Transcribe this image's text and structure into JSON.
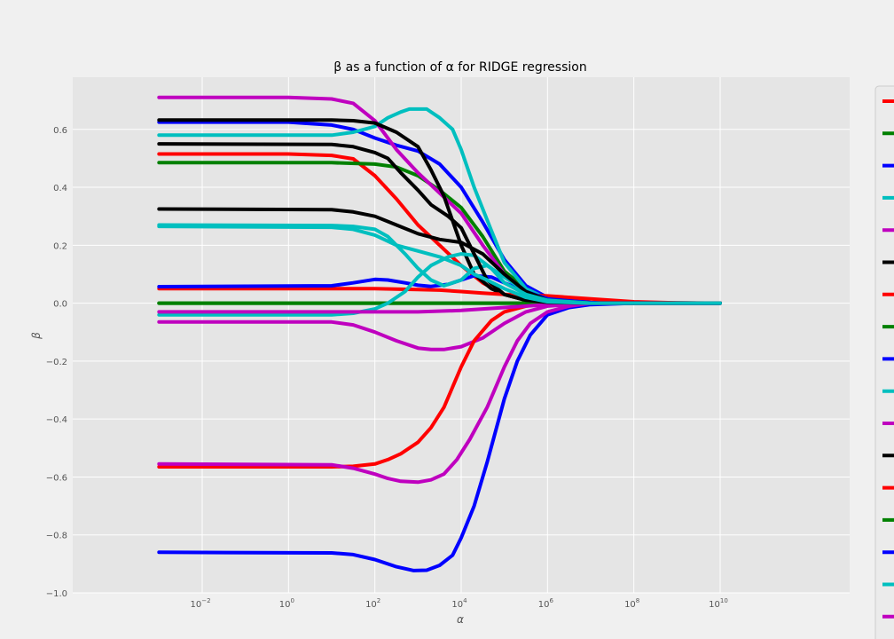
{
  "chart_data": {
    "type": "line",
    "title": "β as a function of α for RIDGE regression",
    "xlabel": "α",
    "ylabel": "β",
    "xscale": "log",
    "xlim": [
      1e-05,
      10000000000000
    ],
    "ylim": [
      -1.0,
      0.78
    ],
    "grid": true,
    "legend_location": "right, cut off at image edge",
    "x_ticks": [
      {
        "exp": -2,
        "base": "10",
        "power": "−2"
      },
      {
        "exp": 0,
        "base": "10",
        "power": "0"
      },
      {
        "exp": 2,
        "base": "10",
        "power": "2"
      },
      {
        "exp": 4,
        "base": "10",
        "power": "4"
      },
      {
        "exp": 6,
        "base": "10",
        "power": "6"
      },
      {
        "exp": 8,
        "base": "10",
        "power": "8"
      },
      {
        "exp": 10,
        "base": "10",
        "power": "10"
      }
    ],
    "y_ticks": [
      {
        "value": 0.6,
        "label": "0.6"
      },
      {
        "value": 0.4,
        "label": "0.4"
      },
      {
        "value": 0.2,
        "label": "0.2"
      },
      {
        "value": 0.0,
        "label": "0.0"
      },
      {
        "value": -0.2,
        "label": "−0.2"
      },
      {
        "value": -0.4,
        "label": "−0.4"
      },
      {
        "value": -0.6,
        "label": "−0.6"
      },
      {
        "value": -0.8,
        "label": "−0.8"
      },
      {
        "value": -1.0,
        "label": "−1.0"
      }
    ],
    "series": [
      {
        "color": "#ff0000",
        "points": [
          [
            -3,
            0.515
          ],
          [
            0,
            0.515
          ],
          [
            1,
            0.51
          ],
          [
            1.5,
            0.498
          ],
          [
            2,
            0.44
          ],
          [
            2.5,
            0.36
          ],
          [
            3,
            0.27
          ],
          [
            3.5,
            0.2
          ],
          [
            4,
            0.13
          ],
          [
            4.5,
            0.07
          ],
          [
            5,
            0.03
          ],
          [
            5.5,
            0.01
          ],
          [
            6,
            0.003
          ],
          [
            7,
            0.0
          ],
          [
            10,
            0.0
          ]
        ]
      },
      {
        "color": "#008000",
        "points": [
          [
            -3,
            0.485
          ],
          [
            1,
            0.485
          ],
          [
            2,
            0.48
          ],
          [
            2.5,
            0.47
          ],
          [
            3,
            0.44
          ],
          [
            3.5,
            0.39
          ],
          [
            4,
            0.33
          ],
          [
            4.5,
            0.23
          ],
          [
            5,
            0.11
          ],
          [
            5.5,
            0.05
          ],
          [
            6,
            0.02
          ],
          [
            7,
            0.002
          ],
          [
            10,
            0.0
          ]
        ]
      },
      {
        "color": "#0000ff",
        "points": [
          [
            -3,
            0.625
          ],
          [
            0,
            0.625
          ],
          [
            1,
            0.615
          ],
          [
            1.5,
            0.6
          ],
          [
            2,
            0.57
          ],
          [
            2.5,
            0.545
          ],
          [
            3,
            0.525
          ],
          [
            3.5,
            0.48
          ],
          [
            4,
            0.4
          ],
          [
            4.5,
            0.28
          ],
          [
            5,
            0.15
          ],
          [
            5.5,
            0.06
          ],
          [
            6,
            0.02
          ],
          [
            7,
            0.002
          ],
          [
            10,
            0.0
          ]
        ]
      },
      {
        "color": "#00bfbf",
        "points": [
          [
            -3,
            0.58
          ],
          [
            1,
            0.58
          ],
          [
            1.5,
            0.59
          ],
          [
            2,
            0.61
          ],
          [
            2.3,
            0.64
          ],
          [
            2.6,
            0.66
          ],
          [
            2.8,
            0.67
          ],
          [
            3.2,
            0.67
          ],
          [
            3.5,
            0.64
          ],
          [
            3.8,
            0.6
          ],
          [
            4,
            0.53
          ],
          [
            4.3,
            0.4
          ],
          [
            4.7,
            0.25
          ],
          [
            5,
            0.14
          ],
          [
            5.5,
            0.05
          ],
          [
            6,
            0.015
          ],
          [
            7,
            0.0
          ],
          [
            10,
            0.0
          ]
        ]
      },
      {
        "color": "#bf00bf",
        "points": [
          [
            -3,
            0.71
          ],
          [
            0,
            0.71
          ],
          [
            1,
            0.705
          ],
          [
            1.5,
            0.69
          ],
          [
            2,
            0.63
          ],
          [
            2.5,
            0.53
          ],
          [
            3,
            0.45
          ],
          [
            3.5,
            0.38
          ],
          [
            4,
            0.31
          ],
          [
            4.5,
            0.2
          ],
          [
            5,
            0.1
          ],
          [
            5.5,
            0.04
          ],
          [
            6,
            0.01
          ],
          [
            7,
            0.0
          ],
          [
            10,
            0.0
          ]
        ]
      },
      {
        "color": "#000000",
        "points": [
          [
            -3,
            0.632
          ],
          [
            1,
            0.632
          ],
          [
            1.5,
            0.63
          ],
          [
            2,
            0.622
          ],
          [
            2.5,
            0.59
          ],
          [
            3,
            0.54
          ],
          [
            3.3,
            0.46
          ],
          [
            3.6,
            0.37
          ],
          [
            4,
            0.2
          ],
          [
            4.3,
            0.1
          ],
          [
            4.7,
            0.05
          ],
          [
            5,
            0.03
          ],
          [
            5.5,
            0.01
          ],
          [
            6,
            0.003
          ],
          [
            7,
            0.0
          ],
          [
            10,
            0.0
          ]
        ]
      },
      {
        "color": "#ff0000",
        "points": [
          [
            -3,
            0.05
          ],
          [
            2,
            0.05
          ],
          [
            3,
            0.047
          ],
          [
            3.5,
            0.045
          ],
          [
            4,
            0.04
          ],
          [
            4.5,
            0.035
          ],
          [
            5,
            0.03
          ],
          [
            6,
            0.025
          ],
          [
            7,
            0.015
          ],
          [
            8,
            0.005
          ],
          [
            9,
            0.001
          ],
          [
            10,
            0.0
          ]
        ]
      },
      {
        "color": "#008000",
        "points": [
          [
            -3,
            0.0
          ],
          [
            10,
            0.0
          ]
        ]
      },
      {
        "color": "#0000ff",
        "points": [
          [
            -3,
            0.057
          ],
          [
            1,
            0.06
          ],
          [
            1.5,
            0.07
          ],
          [
            2,
            0.082
          ],
          [
            2.3,
            0.08
          ],
          [
            2.7,
            0.07
          ],
          [
            3,
            0.062
          ],
          [
            3.3,
            0.058
          ],
          [
            3.7,
            0.065
          ],
          [
            4,
            0.08
          ],
          [
            4.3,
            0.095
          ],
          [
            4.7,
            0.09
          ],
          [
            5,
            0.07
          ],
          [
            5.5,
            0.04
          ],
          [
            6,
            0.015
          ],
          [
            7,
            0.001
          ],
          [
            10,
            0.0
          ]
        ]
      },
      {
        "color": "#00bfbf",
        "points": [
          [
            -3,
            0.27
          ],
          [
            1,
            0.268
          ],
          [
            1.5,
            0.265
          ],
          [
            2,
            0.255
          ],
          [
            2.3,
            0.23
          ],
          [
            2.7,
            0.17
          ],
          [
            3,
            0.12
          ],
          [
            3.3,
            0.08
          ],
          [
            3.6,
            0.06
          ],
          [
            4,
            0.08
          ],
          [
            4.3,
            0.12
          ],
          [
            4.6,
            0.13
          ],
          [
            5,
            0.09
          ],
          [
            5.5,
            0.04
          ],
          [
            6,
            0.01
          ],
          [
            7,
            0.0
          ],
          [
            10,
            0.0
          ]
        ]
      },
      {
        "color": "#bf00bf",
        "points": [
          [
            -3,
            -0.065
          ],
          [
            1,
            -0.065
          ],
          [
            1.5,
            -0.075
          ],
          [
            2,
            -0.1
          ],
          [
            2.5,
            -0.13
          ],
          [
            3,
            -0.155
          ],
          [
            3.3,
            -0.16
          ],
          [
            3.6,
            -0.16
          ],
          [
            4,
            -0.15
          ],
          [
            4.5,
            -0.12
          ],
          [
            5,
            -0.07
          ],
          [
            5.5,
            -0.03
          ],
          [
            6,
            -0.01
          ],
          [
            7,
            0.0
          ],
          [
            10,
            0.0
          ]
        ]
      },
      {
        "color": "#000000",
        "points": [
          [
            -3,
            0.325
          ],
          [
            1,
            0.323
          ],
          [
            1.5,
            0.315
          ],
          [
            2,
            0.3
          ],
          [
            2.5,
            0.27
          ],
          [
            3,
            0.24
          ],
          [
            3.5,
            0.22
          ],
          [
            4,
            0.21
          ],
          [
            4.5,
            0.17
          ],
          [
            5,
            0.1
          ],
          [
            5.5,
            0.04
          ],
          [
            6,
            0.01
          ],
          [
            7,
            0.0
          ],
          [
            10,
            0.0
          ]
        ]
      },
      {
        "color": "#ff0000",
        "points": [
          [
            -3,
            -0.565
          ],
          [
            1,
            -0.565
          ],
          [
            1.5,
            -0.563
          ],
          [
            2,
            -0.555
          ],
          [
            2.3,
            -0.54
          ],
          [
            2.6,
            -0.52
          ],
          [
            3,
            -0.48
          ],
          [
            3.3,
            -0.43
          ],
          [
            3.6,
            -0.36
          ],
          [
            4,
            -0.22
          ],
          [
            4.3,
            -0.13
          ],
          [
            4.7,
            -0.06
          ],
          [
            5,
            -0.03
          ],
          [
            5.5,
            -0.01
          ],
          [
            6,
            0.0
          ],
          [
            10,
            0.0
          ]
        ]
      },
      {
        "color": "#008000",
        "points": [
          [
            -3,
            0.0
          ],
          [
            10,
            0.0
          ]
        ]
      },
      {
        "color": "#0000ff",
        "points": [
          [
            -3,
            -0.86
          ],
          [
            1,
            -0.862
          ],
          [
            1.5,
            -0.868
          ],
          [
            2,
            -0.885
          ],
          [
            2.5,
            -0.91
          ],
          [
            2.9,
            -0.923
          ],
          [
            3.2,
            -0.922
          ],
          [
            3.5,
            -0.905
          ],
          [
            3.8,
            -0.87
          ],
          [
            4,
            -0.81
          ],
          [
            4.3,
            -0.7
          ],
          [
            4.6,
            -0.55
          ],
          [
            5,
            -0.33
          ],
          [
            5.3,
            -0.2
          ],
          [
            5.6,
            -0.11
          ],
          [
            6,
            -0.04
          ],
          [
            6.5,
            -0.015
          ],
          [
            7,
            -0.005
          ],
          [
            8,
            0.0
          ],
          [
            10,
            0.0
          ]
        ]
      },
      {
        "color": "#00bfbf",
        "points": [
          [
            -3,
            -0.04
          ],
          [
            1,
            -0.04
          ],
          [
            1.5,
            -0.035
          ],
          [
            2,
            -0.02
          ],
          [
            2.3,
            0.0
          ],
          [
            2.7,
            0.04
          ],
          [
            3,
            0.09
          ],
          [
            3.3,
            0.13
          ],
          [
            3.7,
            0.16
          ],
          [
            4,
            0.17
          ],
          [
            4.3,
            0.165
          ],
          [
            4.7,
            0.12
          ],
          [
            5,
            0.07
          ],
          [
            5.5,
            0.03
          ],
          [
            6,
            0.01
          ],
          [
            7,
            0.0
          ],
          [
            10,
            0.0
          ]
        ]
      },
      {
        "color": "#bf00bf",
        "points": [
          [
            -3,
            -0.555
          ],
          [
            1,
            -0.558
          ],
          [
            1.5,
            -0.57
          ],
          [
            2,
            -0.59
          ],
          [
            2.3,
            -0.605
          ],
          [
            2.6,
            -0.615
          ],
          [
            3,
            -0.618
          ],
          [
            3.3,
            -0.61
          ],
          [
            3.6,
            -0.59
          ],
          [
            3.9,
            -0.54
          ],
          [
            4.2,
            -0.47
          ],
          [
            4.6,
            -0.36
          ],
          [
            5,
            -0.22
          ],
          [
            5.3,
            -0.13
          ],
          [
            5.6,
            -0.07
          ],
          [
            6,
            -0.03
          ],
          [
            6.5,
            -0.01
          ],
          [
            7,
            0.0
          ],
          [
            10,
            0.0
          ]
        ]
      },
      {
        "color": "#bf00bf",
        "points": [
          [
            -3,
            -0.03
          ],
          [
            3,
            -0.03
          ],
          [
            4,
            -0.025
          ],
          [
            5,
            -0.015
          ],
          [
            6,
            -0.005
          ],
          [
            7,
            0.0
          ],
          [
            10,
            0.0
          ]
        ]
      },
      {
        "color": "#000000",
        "points": [
          [
            -3,
            0.55
          ],
          [
            1,
            0.548
          ],
          [
            1.5,
            0.54
          ],
          [
            2,
            0.52
          ],
          [
            2.3,
            0.5
          ],
          [
            2.6,
            0.45
          ],
          [
            3,
            0.39
          ],
          [
            3.3,
            0.34
          ],
          [
            3.7,
            0.3
          ],
          [
            4,
            0.26
          ],
          [
            4.3,
            0.17
          ],
          [
            4.6,
            0.08
          ],
          [
            5,
            0.03
          ],
          [
            5.5,
            0.01
          ],
          [
            6,
            0.003
          ],
          [
            7,
            0.0
          ],
          [
            10,
            0.0
          ]
        ]
      },
      {
        "color": "#00bfbf",
        "points": [
          [
            -3,
            0.265
          ],
          [
            1,
            0.262
          ],
          [
            1.5,
            0.255
          ],
          [
            2,
            0.235
          ],
          [
            2.5,
            0.2
          ],
          [
            3,
            0.18
          ],
          [
            3.5,
            0.16
          ],
          [
            4,
            0.13
          ],
          [
            4.3,
            0.1
          ],
          [
            4.6,
            0.08
          ],
          [
            5,
            0.05
          ],
          [
            5.5,
            0.02
          ],
          [
            6,
            0.005
          ],
          [
            7,
            0.0
          ],
          [
            10,
            0.0
          ]
        ]
      }
    ],
    "legend_swatches": [
      "#ff0000",
      "#008000",
      "#0000ff",
      "#00bfbf",
      "#bf00bf",
      "#000000",
      "#ff0000",
      "#008000",
      "#0000ff",
      "#00bfbf",
      "#bf00bf",
      "#000000",
      "#ff0000",
      "#008000",
      "#0000ff",
      "#00bfbf",
      "#bf00bf"
    ]
  }
}
